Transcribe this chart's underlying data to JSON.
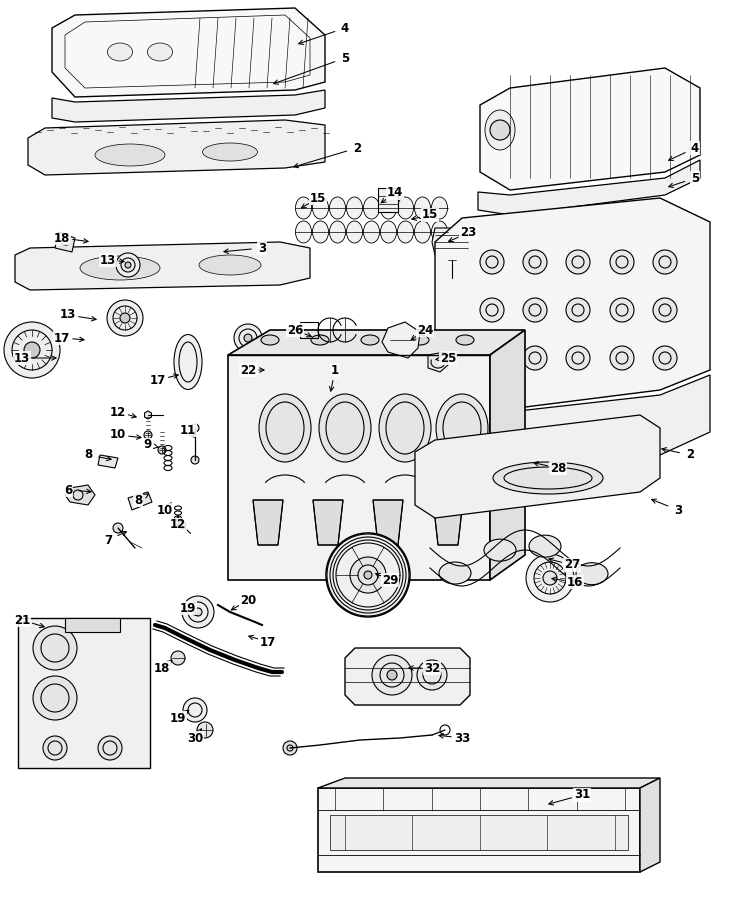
{
  "bg": "#ffffff",
  "lc": "#000000",
  "fig_w": 7.35,
  "fig_h": 9.0,
  "dpi": 100,
  "lw": 0.8,
  "callouts": [
    [
      "4",
      345,
      28,
      295,
      45
    ],
    [
      "5",
      345,
      58,
      270,
      85
    ],
    [
      "2",
      357,
      148,
      290,
      168
    ],
    [
      "3",
      262,
      248,
      220,
      252
    ],
    [
      "15",
      318,
      198,
      298,
      210
    ],
    [
      "14",
      395,
      193,
      378,
      205
    ],
    [
      "15",
      430,
      215,
      408,
      220
    ],
    [
      "23",
      468,
      233,
      445,
      243
    ],
    [
      "18",
      62,
      238,
      92,
      242
    ],
    [
      "13",
      108,
      260,
      128,
      262
    ],
    [
      "13",
      68,
      315,
      100,
      320
    ],
    [
      "13",
      22,
      358,
      60,
      358
    ],
    [
      "17",
      62,
      338,
      88,
      340
    ],
    [
      "17",
      158,
      380,
      182,
      374
    ],
    [
      "22",
      248,
      370,
      268,
      370
    ],
    [
      "1",
      335,
      370,
      330,
      395
    ],
    [
      "26",
      295,
      330,
      315,
      338
    ],
    [
      "24",
      425,
      330,
      408,
      342
    ],
    [
      "25",
      448,
      358,
      432,
      360
    ],
    [
      "12",
      118,
      412,
      140,
      418
    ],
    [
      "10",
      118,
      435,
      145,
      438
    ],
    [
      "9",
      148,
      445,
      162,
      448
    ],
    [
      "8",
      88,
      455,
      115,
      460
    ],
    [
      "11",
      188,
      430,
      195,
      438
    ],
    [
      "6",
      68,
      490,
      95,
      492
    ],
    [
      "8",
      138,
      500,
      152,
      492
    ],
    [
      "10",
      165,
      510,
      172,
      502
    ],
    [
      "12",
      178,
      525,
      178,
      515
    ],
    [
      "7",
      108,
      540,
      130,
      530
    ],
    [
      "2",
      690,
      455,
      658,
      448
    ],
    [
      "3",
      678,
      510,
      648,
      498
    ],
    [
      "28",
      558,
      468,
      530,
      462
    ],
    [
      "4",
      695,
      148,
      665,
      162
    ],
    [
      "5",
      695,
      178,
      665,
      188
    ],
    [
      "27",
      572,
      565,
      545,
      558
    ],
    [
      "16",
      575,
      582,
      548,
      578
    ],
    [
      "29",
      390,
      580,
      372,
      572
    ],
    [
      "21",
      22,
      620,
      48,
      628
    ],
    [
      "19",
      188,
      608,
      200,
      618
    ],
    [
      "20",
      248,
      600,
      228,
      612
    ],
    [
      "18",
      162,
      668,
      175,
      658
    ],
    [
      "17",
      268,
      642,
      245,
      635
    ],
    [
      "19",
      178,
      718,
      192,
      708
    ],
    [
      "30",
      195,
      738,
      202,
      728
    ],
    [
      "32",
      432,
      668,
      405,
      668
    ],
    [
      "33",
      462,
      738,
      435,
      735
    ],
    [
      "31",
      582,
      795,
      545,
      805
    ]
  ]
}
